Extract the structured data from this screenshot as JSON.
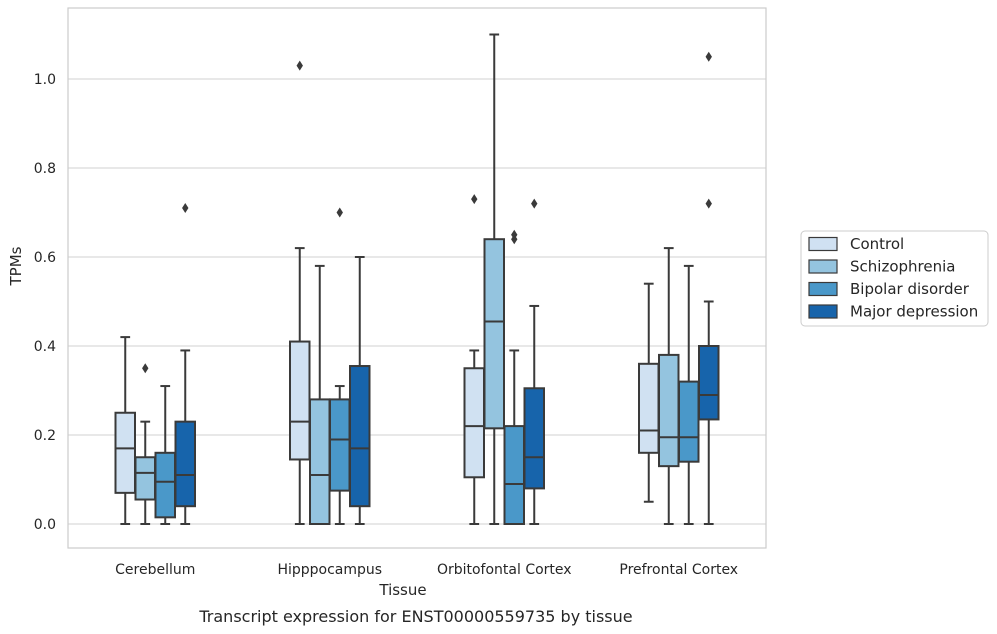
{
  "caption": "Transcript expression for ENST00000559735 by tissue",
  "chart_data": {
    "type": "box",
    "xlabel": "Tissue",
    "ylabel": "TPMs",
    "ylim": [
      -0.05,
      1.16
    ],
    "yticks": [
      "0.0",
      "0.2",
      "0.4",
      "0.6",
      "0.8",
      "1.0"
    ],
    "grid": true,
    "legend_position": "right",
    "categories": [
      "Cerebellum",
      "Hipppocampus",
      "Orbitofontal Cortex",
      "Prefrontal Cortex"
    ],
    "series": [
      {
        "name": "Control",
        "color": "#d0e1f2",
        "boxes": [
          {
            "whisker_low": 0.0,
            "q1": 0.07,
            "median": 0.17,
            "q3": 0.25,
            "whisker_high": 0.42,
            "outliers": []
          },
          {
            "whisker_low": 0.0,
            "q1": 0.145,
            "median": 0.23,
            "q3": 0.41,
            "whisker_high": 0.62,
            "outliers": [
              1.03
            ]
          },
          {
            "whisker_low": 0.0,
            "q1": 0.105,
            "median": 0.22,
            "q3": 0.35,
            "whisker_high": 0.39,
            "outliers": [
              0.73
            ]
          },
          {
            "whisker_low": 0.05,
            "q1": 0.16,
            "median": 0.21,
            "q3": 0.36,
            "whisker_high": 0.54,
            "outliers": []
          }
        ]
      },
      {
        "name": "Schizophrenia",
        "color": "#94c4df",
        "boxes": [
          {
            "whisker_low": 0.0,
            "q1": 0.055,
            "median": 0.115,
            "q3": 0.15,
            "whisker_high": 0.23,
            "outliers": [
              0.35
            ]
          },
          {
            "whisker_low": 0.0,
            "q1": 0.0,
            "median": 0.11,
            "q3": 0.28,
            "whisker_high": 0.58,
            "outliers": []
          },
          {
            "whisker_low": 0.0,
            "q1": 0.215,
            "median": 0.455,
            "q3": 0.64,
            "whisker_high": 1.1,
            "outliers": []
          },
          {
            "whisker_low": 0.0,
            "q1": 0.13,
            "median": 0.195,
            "q3": 0.38,
            "whisker_high": 0.62,
            "outliers": []
          }
        ]
      },
      {
        "name": "Bipolar disorder",
        "color": "#4a98c9",
        "boxes": [
          {
            "whisker_low": 0.0,
            "q1": 0.015,
            "median": 0.095,
            "q3": 0.16,
            "whisker_high": 0.31,
            "outliers": []
          },
          {
            "whisker_low": 0.0,
            "q1": 0.075,
            "median": 0.19,
            "q3": 0.28,
            "whisker_high": 0.31,
            "outliers": [
              0.7
            ]
          },
          {
            "whisker_low": 0.0,
            "q1": 0.0,
            "median": 0.09,
            "q3": 0.22,
            "whisker_high": 0.39,
            "outliers": [
              0.64,
              0.65
            ]
          },
          {
            "whisker_low": 0.0,
            "q1": 0.14,
            "median": 0.195,
            "q3": 0.32,
            "whisker_high": 0.58,
            "outliers": []
          }
        ]
      },
      {
        "name": "Major depression",
        "color": "#1764ab",
        "boxes": [
          {
            "whisker_low": 0.0,
            "q1": 0.04,
            "median": 0.11,
            "q3": 0.23,
            "whisker_high": 0.39,
            "outliers": [
              0.71
            ]
          },
          {
            "whisker_low": 0.0,
            "q1": 0.04,
            "median": 0.17,
            "q3": 0.355,
            "whisker_high": 0.6,
            "outliers": []
          },
          {
            "whisker_low": 0.0,
            "q1": 0.08,
            "median": 0.15,
            "q3": 0.305,
            "whisker_high": 0.49,
            "outliers": [
              0.72
            ]
          },
          {
            "whisker_low": 0.0,
            "q1": 0.235,
            "median": 0.29,
            "q3": 0.4,
            "whisker_high": 0.5,
            "outliers": [
              0.72,
              1.05
            ]
          }
        ]
      }
    ]
  }
}
